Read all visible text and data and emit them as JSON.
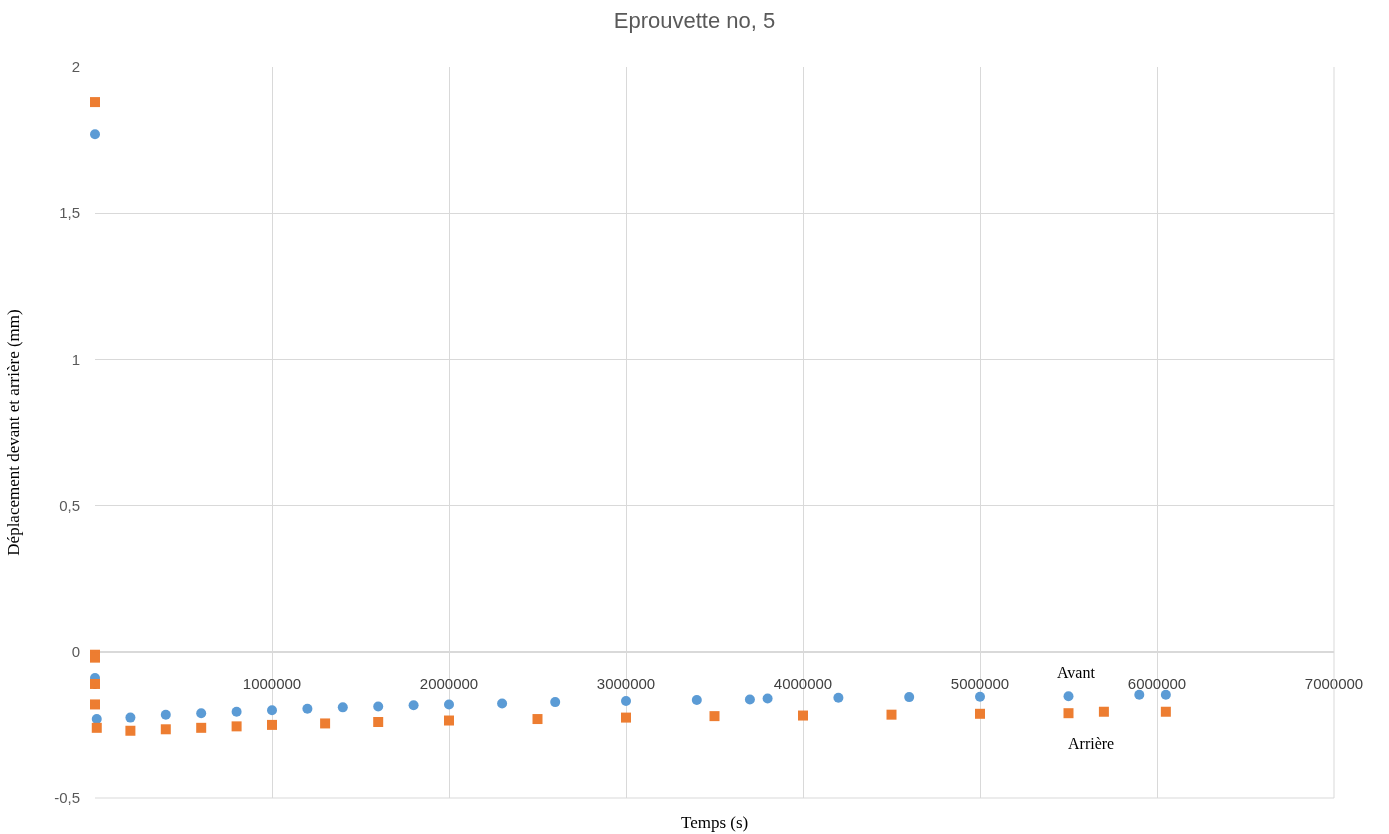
{
  "chart_data": {
    "type": "scatter",
    "title": "Eprouvette no, 5",
    "xlabel": "Temps (s)",
    "ylabel": "Déplacement devant et arrière (mm)",
    "xlim": [
      0,
      7000000
    ],
    "xticks": [
      0,
      1000000,
      2000000,
      3000000,
      4000000,
      5000000,
      6000000,
      7000000
    ],
    "ylim": [
      -0.5,
      2
    ],
    "yticks": [
      {
        "value": -0.5,
        "label": "-0,5"
      },
      0,
      {
        "value": 0.5,
        "label": "0,5"
      },
      1,
      {
        "value": 1.5,
        "label": "1,5"
      },
      2
    ],
    "grid": true,
    "legend": false,
    "series": [
      {
        "name": "Avant",
        "color": "#5b9bd5",
        "marker": "circle",
        "x": [
          0,
          0,
          10000,
          200000,
          400000,
          600000,
          800000,
          1000000,
          1200000,
          1400000,
          1600000,
          1800000,
          2000000,
          2300000,
          2600000,
          3000000,
          3400000,
          3700000,
          3800000,
          4200000,
          4600000,
          5000000,
          5500000,
          5900000,
          6050000
        ],
        "values": [
          1.77,
          -0.09,
          -0.23,
          -0.225,
          -0.215,
          -0.21,
          -0.205,
          -0.2,
          -0.195,
          -0.19,
          -0.187,
          -0.183,
          -0.18,
          -0.177,
          -0.172,
          -0.168,
          -0.165,
          -0.163,
          -0.16,
          -0.157,
          -0.155,
          -0.154,
          -0.152,
          -0.147,
          -0.147
        ]
      },
      {
        "name": "Arrière",
        "color": "#ed7d31",
        "marker": "square",
        "x": [
          0,
          0,
          0,
          0,
          0,
          10000,
          200000,
          400000,
          600000,
          800000,
          1000000,
          1300000,
          1600000,
          2000000,
          2500000,
          3000000,
          3500000,
          4000000,
          4500000,
          5000000,
          5500000,
          5700000,
          6050000
        ],
        "values": [
          1.88,
          -0.01,
          -0.02,
          -0.11,
          -0.18,
          -0.26,
          -0.27,
          -0.265,
          -0.26,
          -0.255,
          -0.25,
          -0.245,
          -0.24,
          -0.235,
          -0.23,
          -0.225,
          -0.22,
          -0.218,
          -0.215,
          -0.212,
          -0.21,
          -0.205,
          -0.205
        ]
      }
    ]
  }
}
